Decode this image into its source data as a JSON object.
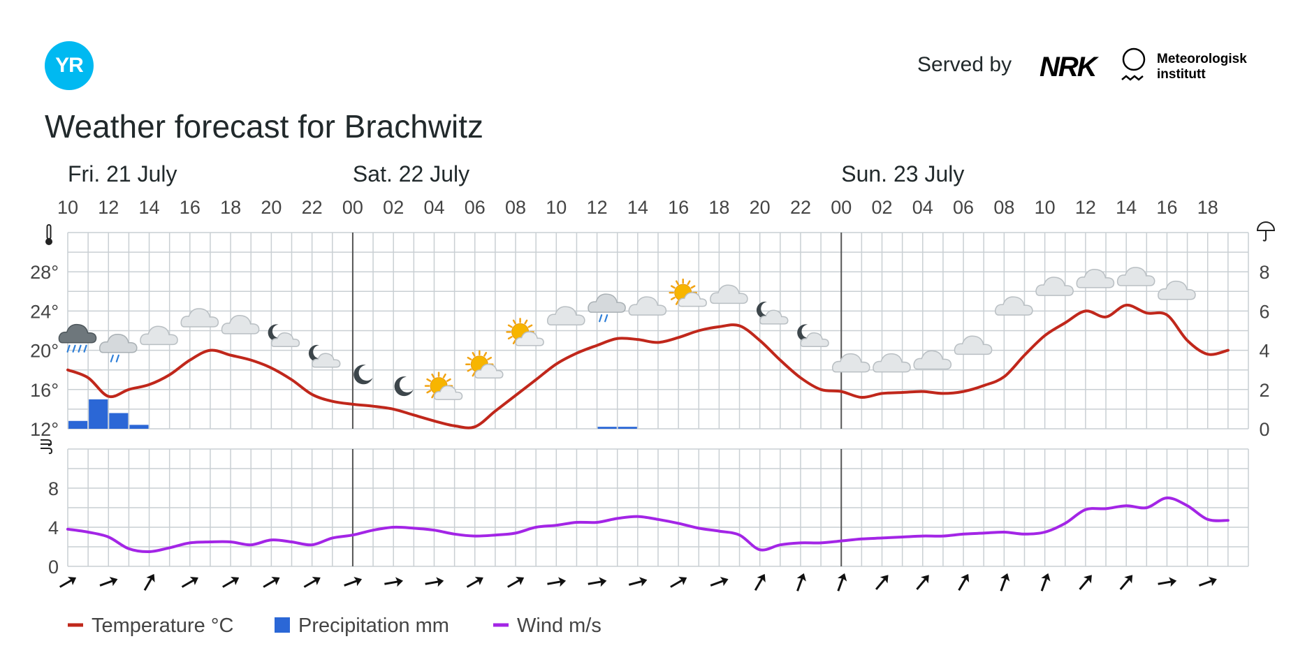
{
  "header": {
    "logo_text": "YR",
    "served_by": "Served by",
    "nrk": "NRK",
    "met_line1": "Meteorologisk",
    "met_line2": "institutt",
    "title": "Weather forecast for Brachwitz"
  },
  "colors": {
    "temperature": "#c0271b",
    "precipitation": "#2b67d6",
    "wind": "#a325e6",
    "grid": "#c9cfd3",
    "day_divider": "#555555"
  },
  "chart_data": {
    "type": "line",
    "days": [
      {
        "label": "Fri. 21 July",
        "start_index": 0
      },
      {
        "label": "Sat. 22 July",
        "start_index": 14
      },
      {
        "label": "Sun. 23 July",
        "start_index": 38
      }
    ],
    "hours": [
      "10",
      "11",
      "12",
      "13",
      "14",
      "15",
      "16",
      "17",
      "18",
      "19",
      "20",
      "21",
      "22",
      "23",
      "00",
      "01",
      "02",
      "03",
      "04",
      "05",
      "06",
      "07",
      "08",
      "09",
      "10",
      "11",
      "12",
      "13",
      "14",
      "15",
      "16",
      "17",
      "18",
      "19",
      "20",
      "21",
      "22",
      "23",
      "00",
      "01",
      "02",
      "03",
      "04",
      "05",
      "06",
      "07",
      "08",
      "09",
      "10",
      "11",
      "12",
      "13",
      "14",
      "15",
      "16",
      "17",
      "18",
      "19"
    ],
    "hour_tick_labels_every": 2,
    "temperature_axis": {
      "ticks": [
        "12°",
        "16°",
        "20°",
        "24°",
        "28°"
      ],
      "min": 12,
      "max": 32
    },
    "precipitation_axis": {
      "ticks": [
        "0",
        "2",
        "4",
        "6",
        "8"
      ],
      "min": 0,
      "max": 10
    },
    "wind_axis": {
      "ticks": [
        "0",
        "4",
        "8"
      ],
      "min": 0,
      "max": 12
    },
    "temperature": [
      18,
      17.2,
      15.3,
      16,
      16.5,
      17.5,
      19,
      20,
      19.5,
      19,
      18.2,
      17,
      15.5,
      14.8,
      14.5,
      14.3,
      14,
      13.4,
      12.8,
      12.3,
      12.2,
      13.8,
      15.4,
      17,
      18.6,
      19.7,
      20.5,
      21.2,
      21.1,
      20.8,
      21.3,
      22,
      22.4,
      22.5,
      21,
      19,
      17.2,
      16,
      15.8,
      15.2,
      15.6,
      15.7,
      15.8,
      15.6,
      15.8,
      16.4,
      17.3,
      19.5,
      21.5,
      22.8,
      24,
      23.4,
      24.6,
      23.8,
      23.6,
      21,
      19.6,
      20
    ],
    "precipitation": [
      0.4,
      1.5,
      0.8,
      0.2,
      0,
      0,
      0,
      0,
      0,
      0,
      0,
      0,
      0,
      0,
      0,
      0,
      0,
      0,
      0,
      0,
      0,
      0,
      0,
      0,
      0,
      0,
      0.1,
      0.1,
      0,
      0,
      0,
      0,
      0,
      0,
      0,
      0,
      0,
      0,
      0,
      0,
      0,
      0,
      0,
      0,
      0,
      0,
      0,
      0,
      0,
      0,
      0,
      0,
      0,
      0,
      0,
      0,
      0,
      0
    ],
    "wind": [
      3.8,
      3.5,
      3,
      1.8,
      1.5,
      1.9,
      2.4,
      2.5,
      2.5,
      2.2,
      2.7,
      2.5,
      2.2,
      2.9,
      3.2,
      3.7,
      4,
      3.9,
      3.7,
      3.3,
      3.1,
      3.2,
      3.4,
      4,
      4.2,
      4.5,
      4.5,
      4.9,
      5.1,
      4.8,
      4.4,
      3.9,
      3.6,
      3.2,
      1.7,
      2.2,
      2.4,
      2.4,
      2.6,
      2.8,
      2.9,
      3,
      3.1,
      3.1,
      3.3,
      3.4,
      3.5,
      3.3,
      3.5,
      4.4,
      5.8,
      5.9,
      6.2,
      6,
      7,
      6.2,
      4.8,
      4.7
    ],
    "weather_symbols": [
      {
        "index": 0.5,
        "temp": 21.2,
        "icon": "heavy-rain-cloud-icon"
      },
      {
        "index": 2.5,
        "temp": 20.2,
        "icon": "light-rain-cloud-icon"
      },
      {
        "index": 4.5,
        "temp": 21.3,
        "icon": "cloud-icon"
      },
      {
        "index": 6.5,
        "temp": 23.1,
        "icon": "cloud-icon"
      },
      {
        "index": 8.5,
        "temp": 22.4,
        "icon": "cloud-icon"
      },
      {
        "index": 10.5,
        "temp": 21.2,
        "icon": "partly-cloudy-night-icon"
      },
      {
        "index": 12.5,
        "temp": 19.1,
        "icon": "partly-cloudy-night-icon"
      },
      {
        "index": 14.5,
        "temp": 17.5,
        "icon": "moon-icon"
      },
      {
        "index": 16.5,
        "temp": 16.3,
        "icon": "moon-icon"
      },
      {
        "index": 18.5,
        "temp": 15.8,
        "icon": "partly-sunny-icon"
      },
      {
        "index": 20.5,
        "temp": 18,
        "icon": "partly-sunny-icon"
      },
      {
        "index": 22.5,
        "temp": 21.3,
        "icon": "partly-sunny-icon"
      },
      {
        "index": 24.5,
        "temp": 23.3,
        "icon": "cloud-icon"
      },
      {
        "index": 26.5,
        "temp": 24.3,
        "icon": "light-rain-cloud-icon"
      },
      {
        "index": 28.5,
        "temp": 24.3,
        "icon": "cloud-icon"
      },
      {
        "index": 30.5,
        "temp": 25.3,
        "icon": "partly-sunny-icon"
      },
      {
        "index": 32.5,
        "temp": 25.5,
        "icon": "cloud-icon"
      },
      {
        "index": 34.5,
        "temp": 23.5,
        "icon": "partly-cloudy-night-icon"
      },
      {
        "index": 36.5,
        "temp": 21.2,
        "icon": "partly-cloudy-night-icon"
      },
      {
        "index": 38.5,
        "temp": 18.5,
        "icon": "cloud-icon"
      },
      {
        "index": 40.5,
        "temp": 18.5,
        "icon": "cloud-icon"
      },
      {
        "index": 42.5,
        "temp": 18.8,
        "icon": "cloud-icon"
      },
      {
        "index": 44.5,
        "temp": 20.3,
        "icon": "cloud-icon"
      },
      {
        "index": 46.5,
        "temp": 24.3,
        "icon": "cloud-icon"
      },
      {
        "index": 48.5,
        "temp": 26.3,
        "icon": "cloud-icon"
      },
      {
        "index": 50.5,
        "temp": 27.1,
        "icon": "cloud-icon"
      },
      {
        "index": 52.5,
        "temp": 27.3,
        "icon": "cloud-icon"
      },
      {
        "index": 54.5,
        "temp": 25.9,
        "icon": "cloud-icon"
      }
    ],
    "wind_directions_deg": [
      60,
      70,
      30,
      60,
      60,
      60,
      60,
      70,
      80,
      80,
      60,
      60,
      80,
      80,
      75,
      60,
      70,
      30,
      20,
      20,
      40,
      40,
      30,
      20,
      20,
      40,
      40,
      80,
      70
    ],
    "legend": [
      {
        "label": "Temperature °C",
        "kind": "line",
        "color": "#c0271b"
      },
      {
        "label": "Precipitation mm",
        "kind": "square",
        "color": "#2b67d6"
      },
      {
        "label": "Wind m/s",
        "kind": "line",
        "color": "#a325e6"
      }
    ]
  }
}
